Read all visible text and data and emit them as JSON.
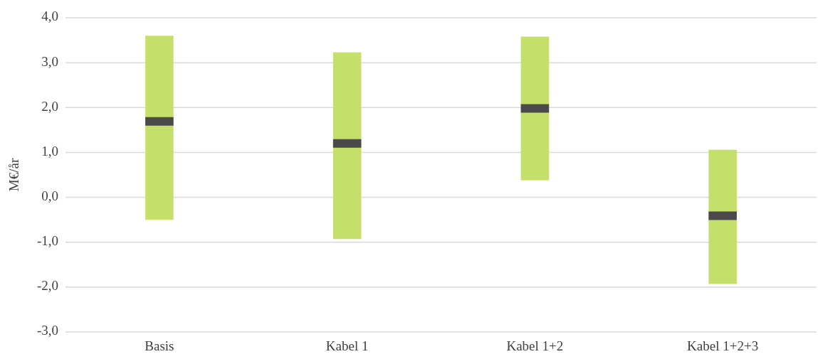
{
  "chart_data": {
    "type": "box",
    "ylabel": "M€/år",
    "categories": [
      "Basis",
      "Kabel 1",
      "Kabel 1+2",
      "Kabel 1+2+3"
    ],
    "series": [
      {
        "color": "#c5e06a",
        "boxes": [
          {
            "low": -0.5,
            "q1": -0.5,
            "median": 1.69,
            "q3": 3.6,
            "high": 3.6
          },
          {
            "low": -0.93,
            "q1": -0.93,
            "median": 1.2,
            "q3": 3.23,
            "high": 3.23
          },
          {
            "low": 0.38,
            "q1": 0.38,
            "median": 1.98,
            "q3": 3.58,
            "high": 3.58
          },
          {
            "low": -1.93,
            "q1": -1.93,
            "median": -0.41,
            "q3": 1.06,
            "high": 1.06
          }
        ]
      }
    ],
    "ylim": [
      -3,
      4
    ],
    "yticks": [
      {
        "value": -3,
        "label": "-3,0"
      },
      {
        "value": -2,
        "label": "-2,0"
      },
      {
        "value": -1,
        "label": "-1,0"
      },
      {
        "value": 0,
        "label": "0,0"
      },
      {
        "value": 1,
        "label": "1,0"
      },
      {
        "value": 2,
        "label": "2,0"
      },
      {
        "value": 3,
        "label": "3,0"
      },
      {
        "value": 4,
        "label": "4,0"
      }
    ],
    "grid": "y"
  }
}
